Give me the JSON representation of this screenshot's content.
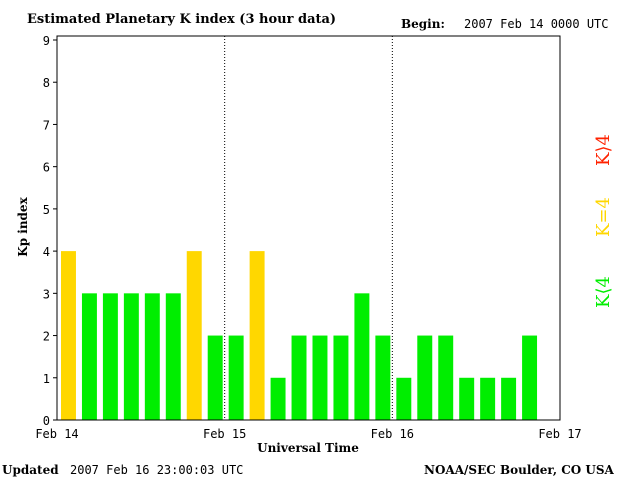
{
  "header": {
    "title": "Estimated Planetary K index (3 hour data)",
    "begin_label": "Begin:",
    "begin_value": "2007 Feb 14 0000 UTC"
  },
  "footer": {
    "updated_label": "Updated",
    "updated_value": "2007 Feb 16 23:00:03 UTC",
    "source": "NOAA/SEC Boulder, CO USA"
  },
  "legend": {
    "gt4": "K⟩4",
    "eq4": "K=4",
    "lt4": "K⟨4"
  },
  "colors": {
    "green": "#00ee00",
    "yellow": "#ffd700",
    "red": "#ff2200",
    "frame": "#000000"
  },
  "chart_data": {
    "type": "bar",
    "title": "Estimated Planetary K index (3 hour data)",
    "xlabel": "Universal Time",
    "ylabel": "Kp index",
    "ylim": [
      0,
      9
    ],
    "yticks": [
      "0",
      "1",
      "2",
      "3",
      "4",
      "5",
      "6",
      "7",
      "8",
      "9"
    ],
    "xticks": [
      "Feb 14",
      "Feb 15",
      "Feb 16",
      "Feb 17"
    ],
    "interval_hours": 3,
    "x": [
      "Feb 14 00",
      "Feb 14 03",
      "Feb 14 06",
      "Feb 14 09",
      "Feb 14 12",
      "Feb 14 15",
      "Feb 14 18",
      "Feb 14 21",
      "Feb 15 00",
      "Feb 15 03",
      "Feb 15 06",
      "Feb 15 09",
      "Feb 15 12",
      "Feb 15 15",
      "Feb 15 18",
      "Feb 15 21",
      "Feb 16 00",
      "Feb 16 03",
      "Feb 16 06",
      "Feb 16 09",
      "Feb 16 12",
      "Feb 16 15",
      "Feb 16 18",
      "Feb 16 21"
    ],
    "values": [
      4,
      3,
      3,
      3,
      3,
      3,
      4,
      2,
      2,
      4,
      1,
      2,
      2,
      2,
      3,
      2,
      1,
      2,
      2,
      1,
      1,
      1,
      2,
      null
    ],
    "grid": "dotted vertical lines at day boundaries"
  }
}
